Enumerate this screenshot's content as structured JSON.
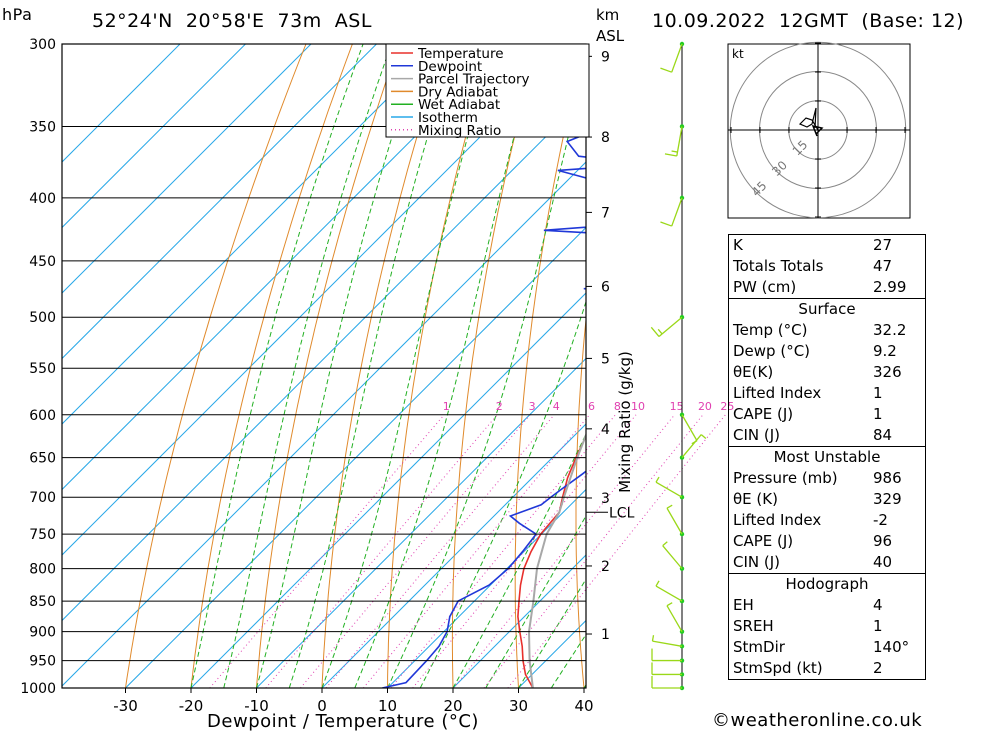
{
  "header": {
    "location": "52°24'N  20°58'E  73m  ASL",
    "datetime": "10.09.2022  12GMT  (Base: 12)",
    "pressure_unit": "hPa",
    "height_unit_km": "km",
    "height_unit_asl": "ASL"
  },
  "chart_data": {
    "type": "line",
    "subtype": "skew-t log-p sounding",
    "xlabel": "Dewpoint / Temperature (°C)",
    "ylabel": "hPa",
    "mixing_ratio_label": "Mixing Ratio (g/kg)",
    "x_ticks": [
      -30,
      -20,
      -10,
      0,
      10,
      20,
      30,
      40
    ],
    "xlim": [
      -40,
      40
    ],
    "pressure_levels": [
      300,
      350,
      400,
      450,
      500,
      550,
      600,
      650,
      700,
      750,
      800,
      850,
      900,
      950,
      1000
    ],
    "ylim": [
      1000,
      300
    ],
    "height_km_ticks": [
      {
        "label": "1",
        "p": 904
      },
      {
        "label": "2",
        "p": 796
      },
      {
        "label": "3",
        "p": 701
      },
      {
        "label": "4",
        "p": 616
      },
      {
        "label": "5",
        "p": 540
      },
      {
        "label": "6",
        "p": 472
      },
      {
        "label": "7",
        "p": 411
      },
      {
        "label": "8",
        "p": 357
      },
      {
        "label": "9",
        "p": 307
      }
    ],
    "lcl_label": "LCL",
    "lcl_p": 720,
    "mixing_ratio_values": [
      "1",
      "2",
      "3",
      "4",
      "6",
      "8",
      "10",
      "15",
      "20",
      "25"
    ],
    "legend": [
      "Temperature",
      "Dewpoint",
      "Parcel Trajectory",
      "Dry Adiabat",
      "Wet Adiabat",
      "Isotherm",
      "Mixing Ratio"
    ],
    "series": [
      {
        "name": "Temperature",
        "color": "#e8302c",
        "points": [
          [
            1000,
            32.2
          ],
          [
            975,
            29
          ],
          [
            950,
            26.5
          ],
          [
            925,
            24.2
          ],
          [
            900,
            21.6
          ],
          [
            875,
            19
          ],
          [
            850,
            16.8
          ],
          [
            825,
            14.6
          ],
          [
            800,
            12.6
          ],
          [
            775,
            11.1
          ],
          [
            750,
            9.9
          ],
          [
            720,
            9.4
          ],
          [
            700,
            7.6
          ],
          [
            675,
            5.4
          ],
          [
            650,
            3.6
          ],
          [
            625,
            1.9
          ],
          [
            600,
            0.2
          ],
          [
            575,
            -1.5
          ],
          [
            550,
            -3.3
          ],
          [
            525,
            -5.1
          ],
          [
            500,
            -7.1
          ],
          [
            480,
            -8.2
          ],
          [
            470,
            -8.6
          ],
          [
            450,
            -10.8
          ],
          [
            430,
            -13.6
          ],
          [
            410,
            -15.5
          ],
          [
            400,
            -17
          ],
          [
            380,
            -19.8
          ],
          [
            370,
            -20.8
          ],
          [
            360,
            -21.3
          ],
          [
            350,
            -23
          ],
          [
            340,
            -25
          ],
          [
            325,
            -28
          ],
          [
            310,
            -31
          ],
          [
            300,
            -33
          ]
        ]
      },
      {
        "name": "Dewpoint",
        "color": "#2038d8",
        "points": [
          [
            1000,
            9.2
          ],
          [
            990,
            12
          ],
          [
            950,
            11.8
          ],
          [
            925,
            11.5
          ],
          [
            900,
            10.5
          ],
          [
            875,
            8.6
          ],
          [
            850,
            7.5
          ],
          [
            825,
            9.8
          ],
          [
            800,
            10.2
          ],
          [
            775,
            9.8
          ],
          [
            750,
            9.2
          ],
          [
            735,
            5
          ],
          [
            725,
            2.5
          ],
          [
            710,
            5.5
          ],
          [
            700,
            5.8
          ],
          [
            690,
            6.2
          ],
          [
            670,
            7.1
          ],
          [
            655,
            7.6
          ],
          [
            640,
            6.8
          ],
          [
            620,
            4.2
          ],
          [
            600,
            1.6
          ],
          [
            585,
            -0.8
          ],
          [
            580,
            -0.8
          ],
          [
            575,
            -2.5
          ],
          [
            570,
            0.2
          ],
          [
            560,
            0.8
          ],
          [
            550,
            0.2
          ],
          [
            540,
            -0.4
          ],
          [
            525,
            -1
          ],
          [
            510,
            -1.4
          ],
          [
            500,
            -2.5
          ],
          [
            490,
            -3.2
          ],
          [
            480,
            -5.7
          ],
          [
            474,
            -21
          ],
          [
            470,
            -13
          ],
          [
            460,
            -13.8
          ],
          [
            450,
            -11.6
          ],
          [
            440,
            -16
          ],
          [
            430,
            -18.2
          ],
          [
            425,
            -36
          ],
          [
            420,
            -24
          ],
          [
            410,
            -22
          ],
          [
            400,
            -28
          ],
          [
            390,
            -33
          ],
          [
            380,
            -43
          ],
          [
            375,
            -29
          ],
          [
            372,
            -38
          ],
          [
            370,
            -42
          ],
          [
            360,
            -46
          ],
          [
            340,
            -39
          ],
          [
            320,
            -35
          ],
          [
            310,
            -30
          ],
          [
            305,
            -33
          ],
          [
            300,
            -34
          ]
        ]
      },
      {
        "name": "Parcel Trajectory",
        "color": "#a8a8a8",
        "points": [
          [
            1000,
            32.2
          ],
          [
            950,
            27.5
          ],
          [
            900,
            23
          ],
          [
            850,
            19
          ],
          [
            800,
            14.6
          ],
          [
            750,
            10.8
          ],
          [
            720,
            9.4
          ],
          [
            700,
            7.8
          ],
          [
            650,
            3.8
          ],
          [
            600,
            -0.2
          ],
          [
            550,
            -4.3
          ],
          [
            500,
            -8.7
          ],
          [
            450,
            -13.7
          ],
          [
            400,
            -19.1
          ],
          [
            350,
            -25.3
          ],
          [
            300,
            -32.8
          ]
        ]
      }
    ],
    "wind_barbs": [
      {
        "p": 1000,
        "dir": 270,
        "kt": 10
      },
      {
        "p": 975,
        "dir": 270,
        "kt": 10
      },
      {
        "p": 950,
        "dir": 270,
        "kt": 10
      },
      {
        "p": 925,
        "dir": 280,
        "kt": 5
      },
      {
        "p": 900,
        "dir": 330,
        "kt": 5
      },
      {
        "p": 850,
        "dir": 300,
        "kt": 5
      },
      {
        "p": 800,
        "dir": 320,
        "kt": 5
      },
      {
        "p": 750,
        "dir": 330,
        "kt": 5
      },
      {
        "p": 700,
        "dir": 300,
        "kt": 5
      },
      {
        "p": 650,
        "dir": 40,
        "kt": 5
      },
      {
        "p": 600,
        "dir": 150,
        "kt": 5
      },
      {
        "p": 500,
        "dir": 230,
        "kt": 15
      },
      {
        "p": 400,
        "dir": 200,
        "kt": 10
      },
      {
        "p": 350,
        "dir": 190,
        "kt": 15
      },
      {
        "p": 300,
        "dir": 200,
        "kt": 10
      }
    ],
    "hodograph": {
      "unit": "kt",
      "ring_labels": [
        "15",
        "30",
        "45"
      ]
    }
  },
  "indices": {
    "general": [
      {
        "label": "K",
        "value": "27"
      },
      {
        "label": "Totals Totals",
        "value": "47"
      },
      {
        "label": "PW (cm)",
        "value": "2.99"
      }
    ],
    "surface": {
      "title": "Surface",
      "rows": [
        {
          "label": "Temp (°C)",
          "value": "32.2"
        },
        {
          "label": "Dewp (°C)",
          "value": "9.2"
        },
        {
          "label": "θE(K)",
          "value": "326"
        },
        {
          "label": "Lifted Index",
          "value": "1"
        },
        {
          "label": "CAPE (J)",
          "value": "1"
        },
        {
          "label": "CIN (J)",
          "value": "84"
        }
      ]
    },
    "most_unstable": {
      "title": "Most Unstable",
      "rows": [
        {
          "label": "Pressure (mb)",
          "value": "986"
        },
        {
          "label": "θE (K)",
          "value": "329"
        },
        {
          "label": "Lifted Index",
          "value": "-2"
        },
        {
          "label": "CAPE (J)",
          "value": "96"
        },
        {
          "label": "CIN (J)",
          "value": "40"
        }
      ]
    },
    "hodograph": {
      "title": "Hodograph",
      "rows": [
        {
          "label": "EH",
          "value": "4"
        },
        {
          "label": "SREH",
          "value": "1"
        },
        {
          "label": "StmDir",
          "value": "140°"
        },
        {
          "label": "StmSpd (kt)",
          "value": "2"
        }
      ]
    }
  },
  "footer": {
    "copyright": "©weatheronline.co.uk"
  },
  "colors": {
    "temperature": "#e8302c",
    "dewpoint": "#2038d8",
    "parcel": "#a8a8a8",
    "dry_adiabat": "#e08a2c",
    "wet_adiabat": "#22b022",
    "isotherm": "#28a8e8",
    "mixing_ratio": "#e040b0",
    "wind": "#9ad818"
  }
}
